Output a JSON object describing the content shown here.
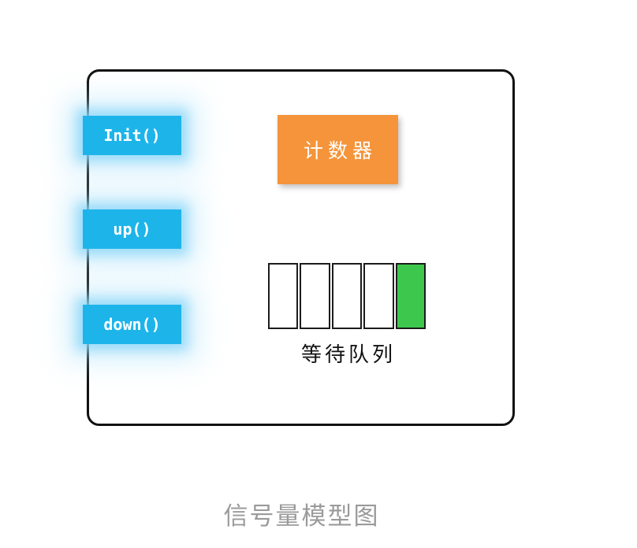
{
  "diagram": {
    "caption": "信号量模型图",
    "operations": [
      {
        "id": "init",
        "label": "Init()"
      },
      {
        "id": "up",
        "label": "up()"
      },
      {
        "id": "down",
        "label": "down()"
      }
    ],
    "counter": {
      "label": "计数器"
    },
    "wait_queue": {
      "label": "等待队列",
      "cells": [
        {
          "state": "empty"
        },
        {
          "state": "empty"
        },
        {
          "state": "empty"
        },
        {
          "state": "empty"
        },
        {
          "state": "filled"
        }
      ]
    },
    "colors": {
      "button_blue": "#1db4ea",
      "button_glow_blue": "#89d6f7",
      "counter_orange": "#f5943a",
      "queue_cell_green": "#3dc84d",
      "outline_black": "#111111",
      "caption_gray": "#9a9a9a"
    }
  }
}
